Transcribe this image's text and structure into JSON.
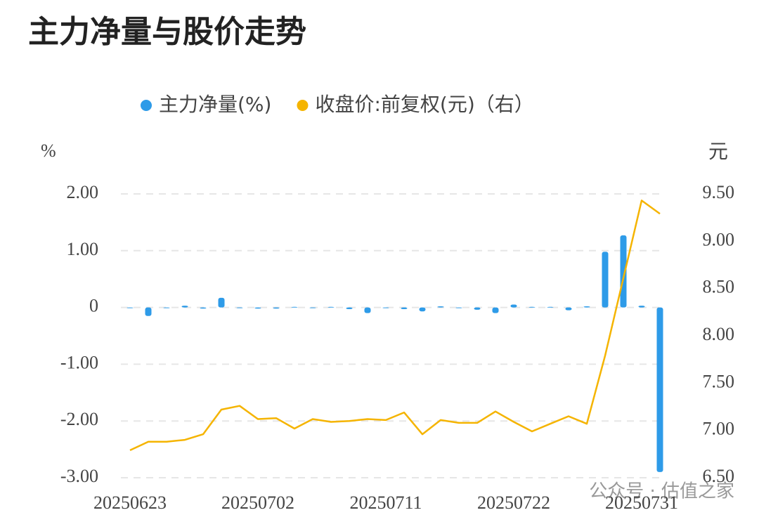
{
  "chart_data": {
    "type": "bar_line",
    "title": "主力净量与股价走势",
    "y_label": "%",
    "y2_label": "元",
    "watermark": "公众号 · 估值之家",
    "categories": [
      "20250623",
      null,
      null,
      null,
      null,
      null,
      null,
      "20250702",
      null,
      null,
      null,
      null,
      null,
      null,
      "20250711",
      null,
      null,
      null,
      null,
      null,
      null,
      "20250722",
      null,
      null,
      null,
      null,
      null,
      null,
      "20250731",
      null
    ],
    "series": [
      {
        "name": "主力净量(%)",
        "type": "bar",
        "color": "#2e9be8",
        "values": [
          -0.01,
          -0.15,
          -0.01,
          0.03,
          -0.02,
          0.17,
          -0.01,
          -0.02,
          -0.02,
          0.01,
          -0.01,
          0.01,
          -0.03,
          -0.1,
          -0.01,
          -0.03,
          -0.07,
          0.02,
          -0.01,
          -0.04,
          -0.1,
          0.05,
          0.01,
          0.01,
          -0.05,
          0.02,
          0.98,
          1.27,
          0.03,
          -2.9
        ]
      },
      {
        "name": "收盘价:前复权(元)（右）",
        "type": "line",
        "axis": "y2",
        "color": "#f5b400",
        "values": [
          6.79,
          6.88,
          6.88,
          6.9,
          6.96,
          7.22,
          7.26,
          7.12,
          7.13,
          7.02,
          7.12,
          7.09,
          7.1,
          7.12,
          7.11,
          7.19,
          6.96,
          7.11,
          7.08,
          7.08,
          7.2,
          7.09,
          6.99,
          7.07,
          7.15,
          7.07,
          7.79,
          8.61,
          9.43,
          9.29
        ]
      }
    ],
    "ylim": [
      -3,
      2
    ],
    "yticks": [
      {
        "value": -3,
        "label": "-3.00"
      },
      {
        "value": -2,
        "label": "-2.00"
      },
      {
        "value": -1,
        "label": "-1.00"
      },
      0,
      {
        "value": 1,
        "label": "1.00"
      },
      {
        "value": 2,
        "label": "2.00"
      }
    ],
    "y2lim": [
      6.5,
      9.5
    ],
    "y2ticks": [
      {
        "value": 6.5,
        "label": "6.50"
      },
      {
        "value": 7,
        "label": "7.00"
      },
      {
        "value": 7.5,
        "label": "7.50"
      },
      {
        "value": 8,
        "label": "8.00"
      },
      {
        "value": 8.5,
        "label": "8.50"
      },
      {
        "value": 9,
        "label": "9.00"
      },
      {
        "value": 9.5,
        "label": "9.50"
      }
    ],
    "grid": true
  }
}
